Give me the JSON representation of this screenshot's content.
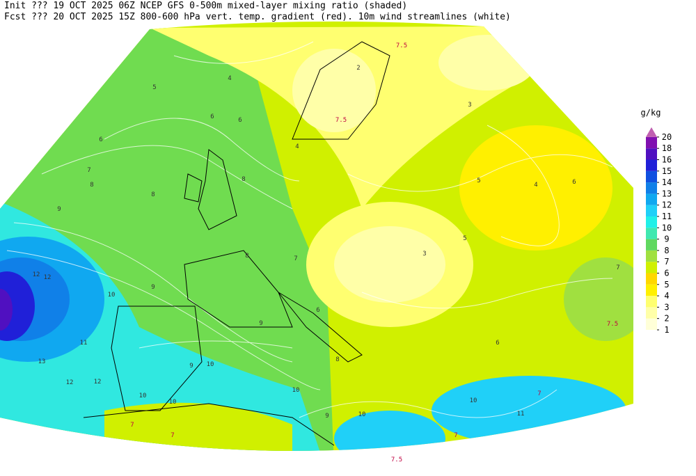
{
  "header": {
    "line1": "Init  ??? 19 OCT 2025 06Z  NCEP GFS 0-500m mixed-layer mixing ratio (shaded)",
    "line2": "Fcst ??? 20 OCT 2025 15Z  800-600 hPa vert. temp. gradient (red). 10m wind streamlines (white)"
  },
  "colorbar": {
    "unit": "g/kg",
    "levels": [
      1,
      2,
      3,
      4,
      5,
      6,
      7,
      8,
      9,
      10,
      11,
      12,
      13,
      14,
      15,
      16,
      18,
      20
    ],
    "colors": [
      "#ffffd8",
      "#ffffa8",
      "#ffff70",
      "#fff000",
      "#ffd800",
      "#d0f000",
      "#a0e040",
      "#60d860",
      "#40e8b0",
      "#20f0e8",
      "#20d0f8",
      "#10a8f0",
      "#1080e8",
      "#1050e0",
      "#2020d8",
      "#5010c0",
      "#8010b0"
    ],
    "top_color": "#c060b0"
  },
  "contour_labels": [
    "5",
    "4",
    "6",
    "7",
    "6",
    "6",
    "8",
    "8",
    "8",
    "9",
    "12",
    "12",
    "10",
    "11",
    "13",
    "12",
    "12",
    "10",
    "10",
    "9",
    "10",
    "9",
    "8",
    "7",
    "6",
    "9",
    "8",
    "10",
    "9",
    "10",
    "11",
    "10",
    "6",
    "7",
    "5",
    "4",
    "5",
    "6",
    "3",
    "2",
    "3",
    "4"
  ],
  "gradient_labels": [
    "7.5",
    "7.5",
    "7.5",
    "7",
    "7",
    "7.5",
    "7",
    "7"
  ]
}
